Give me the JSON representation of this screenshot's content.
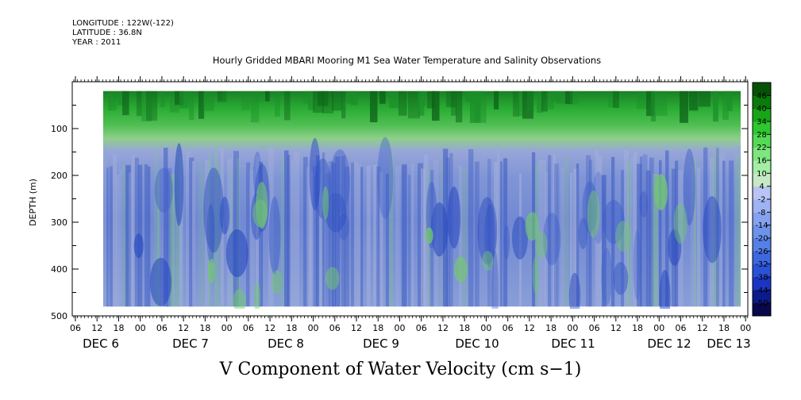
{
  "header": {
    "longitude": "LONGITUDE : 122W(-122)",
    "latitude": "LATITUDE : 36.8N",
    "year": "YEAR : 2011",
    "title": "Hourly Gridded MBARI Mooring M1 Sea Water Temperature and Salinity Observations"
  },
  "footer": {
    "variable_label": "V Component of Water Velocity (cm s−1)"
  },
  "chart_data": {
    "type": "heatmap",
    "title": "Hourly Gridded MBARI Mooring M1 Sea Water Temperature and Salinity Observations",
    "xlabel": "",
    "ylabel": "DEPTH (m)",
    "x_hour_ticks": [
      "06",
      "12",
      "18",
      "00",
      "06",
      "12",
      "18",
      "00",
      "06",
      "12",
      "18",
      "00",
      "06",
      "12",
      "18",
      "00",
      "06",
      "12",
      "18",
      "00",
      "06",
      "12",
      "18",
      "00",
      "06",
      "12",
      "18",
      "00",
      "06",
      "12",
      "18",
      "00"
    ],
    "x_day_labels": [
      "DEC 6",
      "DEC 7",
      "DEC 8",
      "DEC 9",
      "DEC 10",
      "DEC 11",
      "DEC 12",
      "DEC 13"
    ],
    "y_ticks": [
      100,
      200,
      300,
      400,
      500
    ],
    "ylim": [
      500,
      0
    ],
    "depth_range_shown": [
      20,
      480
    ],
    "colorbar": {
      "levels": [
        -50,
        -44,
        -38,
        -32,
        -26,
        -20,
        -14,
        -8,
        -2,
        4,
        10,
        16,
        22,
        28,
        34,
        40,
        46
      ],
      "colors": [
        "#08084a",
        "#0d1a8c",
        "#1a35c4",
        "#2a52d8",
        "#3d68e0",
        "#5580e6",
        "#6d92ea",
        "#85a2ee",
        "#9fb3f2",
        "#b9c4f4",
        "#c6e8c6",
        "#a3eea3",
        "#7ee67e",
        "#55da55",
        "#2ec82e",
        "#17a617",
        "#0b7a0b",
        "#055205"
      ],
      "tick_labels": [
        "46",
        "40",
        "34",
        "28",
        "22",
        "16",
        "10",
        "4",
        "-2",
        "-8",
        "-14",
        "-20",
        "-26",
        "-32",
        "-38",
        "-44",
        "-50"
      ]
    },
    "pattern_summary": "Positive (green) velocities in upper ~20-120 m, negative (blue) velocities below ~150 m"
  }
}
